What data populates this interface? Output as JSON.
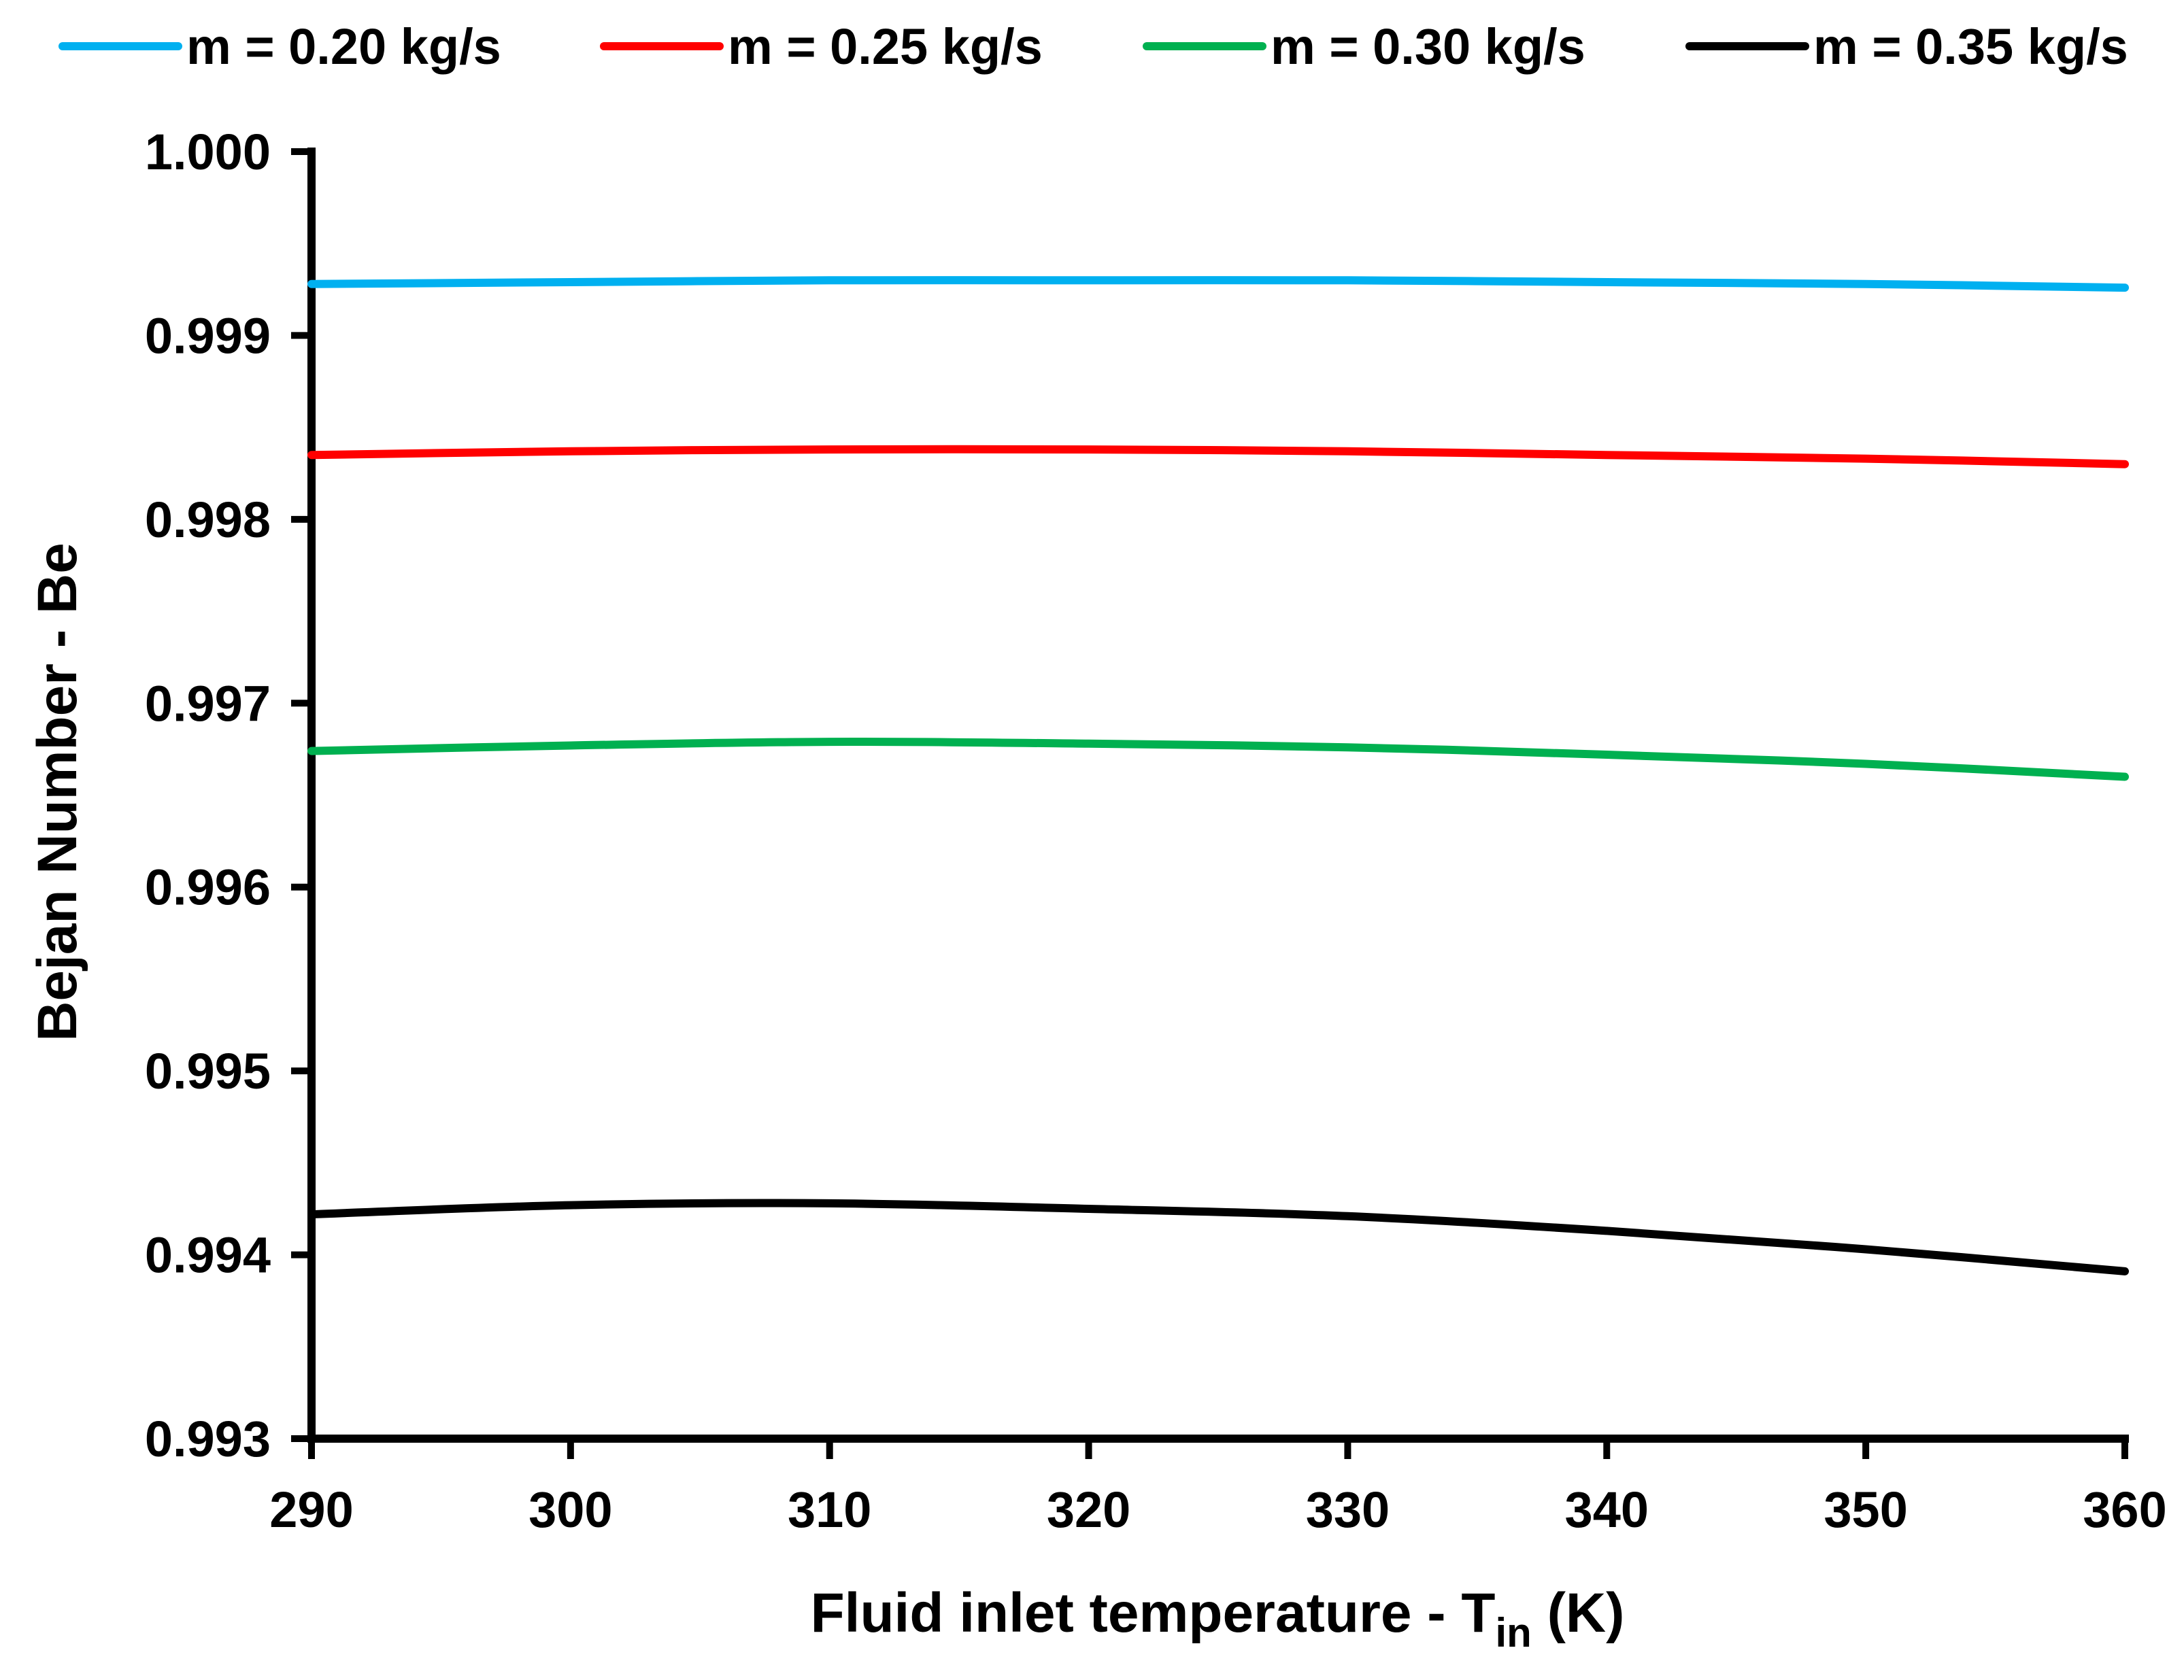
{
  "chart_data": {
    "type": "line",
    "title": "",
    "xlabel": "Fluid inlet temperature - T",
    "xlabel_subscript": "in",
    "xlabel_suffix": " (K)",
    "ylabel": "Bejan Number - Be",
    "xlim": [
      290,
      360
    ],
    "ylim": [
      0.993,
      1.0
    ],
    "x_ticks": [
      290,
      300,
      310,
      320,
      330,
      340,
      350,
      360
    ],
    "x_tick_labels": [
      "290",
      "300",
      "310",
      "320",
      "330",
      "340",
      "350",
      "360"
    ],
    "y_ticks": [
      0.993,
      0.994,
      0.995,
      0.996,
      0.997,
      0.998,
      0.999,
      1.0
    ],
    "y_tick_labels": [
      "0.993",
      "0.994",
      "0.995",
      "0.996",
      "0.997",
      "0.998",
      "0.999",
      "1.000"
    ],
    "grid": false,
    "legend_position": "top",
    "x": [
      290,
      300,
      310,
      320,
      330,
      340,
      350,
      360
    ],
    "series": [
      {
        "name": "m = 0.20 kg/s",
        "color": "#00B0F0",
        "values": [
          0.99928,
          0.99929,
          0.9993,
          0.9993,
          0.9993,
          0.99929,
          0.99928,
          0.99926
        ]
      },
      {
        "name": "m = 0.25 kg/s",
        "color": "#FF0000",
        "values": [
          0.99835,
          0.99837,
          0.99838,
          0.99838,
          0.99837,
          0.99835,
          0.99833,
          0.9983
        ]
      },
      {
        "name": "m = 0.30 kg/s",
        "color": "#00B050",
        "values": [
          0.99674,
          0.99677,
          0.99679,
          0.99678,
          0.99676,
          0.99672,
          0.99667,
          0.9966
        ]
      },
      {
        "name": "m = 0.35 kg/s",
        "color": "#000000",
        "values": [
          0.99422,
          0.99427,
          0.99428,
          0.99425,
          0.99421,
          0.99413,
          0.99403,
          0.99391
        ]
      }
    ]
  }
}
